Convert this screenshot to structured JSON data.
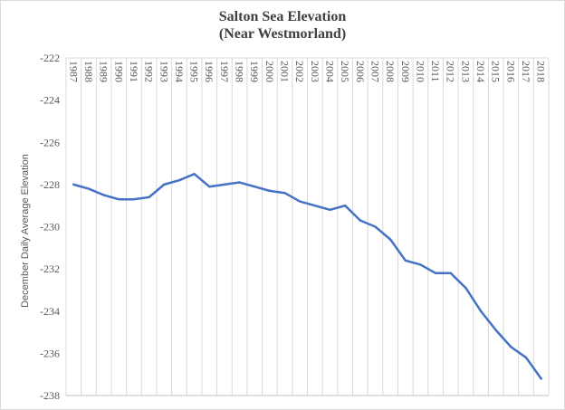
{
  "chart_data": {
    "type": "line",
    "title": "Salton  Sea Elevation",
    "subtitle": "(Near Westmorland)",
    "ylabel": "December  Daily Average Elevation",
    "xlabel": "",
    "ylim": [
      -238,
      -222
    ],
    "yticks": [
      -222,
      -224,
      -226,
      -228,
      -230,
      -232,
      -234,
      -236,
      -238
    ],
    "grid": "vertical",
    "legend": "none",
    "line_color": "#4472c4",
    "categories": [
      "1987",
      "1988",
      "1989",
      "1990",
      "1991",
      "1992",
      "1993",
      "1994",
      "1995",
      "1996",
      "1997",
      "1998",
      "1999",
      "2000",
      "2001",
      "2002",
      "2003",
      "2004",
      "2005",
      "2006",
      "2007",
      "2008",
      "2009",
      "2010",
      "2011",
      "2012",
      "2013",
      "2014",
      "2015",
      "2016",
      "2017",
      "2018"
    ],
    "values": [
      -228.0,
      -228.2,
      -228.5,
      -228.7,
      -228.7,
      -228.6,
      -228.0,
      -227.8,
      -227.5,
      -228.1,
      -228.0,
      -227.9,
      -228.1,
      -228.3,
      -228.4,
      -228.8,
      -229.0,
      -229.2,
      -229.0,
      -229.7,
      -230.0,
      -230.6,
      -231.6,
      -231.8,
      -232.2,
      -232.2,
      -232.9,
      -234.0,
      -234.9,
      -235.7,
      -236.2,
      -237.2
    ]
  }
}
